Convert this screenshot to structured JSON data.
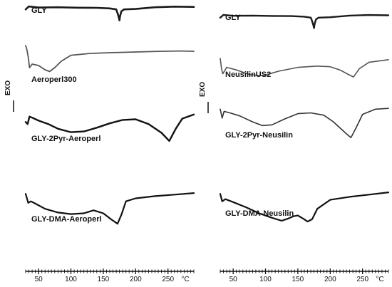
{
  "chart_data": [
    {
      "type": "line",
      "title": "",
      "ylabel": "EXO",
      "xunit": "°C",
      "xlim": [
        30,
        290
      ],
      "xticks": [
        50,
        100,
        150,
        200,
        250
      ],
      "series": [
        {
          "name": "GLY",
          "color": "#1a1a1a",
          "x": [
            30,
            35,
            50,
            80,
            110,
            140,
            160,
            170,
            172,
            174,
            175,
            176,
            178,
            182,
            200,
            230,
            260,
            290
          ],
          "y": [
            0.55,
            0.75,
            0.68,
            0.7,
            0.67,
            0.66,
            0.62,
            0.55,
            0.3,
            0.0,
            -0.2,
            0.1,
            0.42,
            0.55,
            0.58,
            0.7,
            0.74,
            0.72
          ]
        },
        {
          "name": "Aeroperl300",
          "color": "#555555",
          "x": [
            30,
            32,
            34,
            36,
            40,
            50,
            60,
            67,
            75,
            85,
            100,
            130,
            160,
            200,
            240,
            270,
            290
          ],
          "y": [
            1.0,
            0.7,
            0.2,
            -0.55,
            -0.3,
            -0.4,
            -0.7,
            -0.82,
            -0.55,
            -0.1,
            0.32,
            0.45,
            0.5,
            0.55,
            0.6,
            0.62,
            0.6
          ]
        },
        {
          "name": "GLY-2Pyr-Aeroperl",
          "color": "#111111",
          "x": [
            30,
            33,
            36,
            40,
            50,
            65,
            80,
            100,
            120,
            140,
            160,
            180,
            200,
            220,
            240,
            252,
            262,
            272,
            290
          ],
          "y": [
            0.3,
            0.15,
            0.7,
            0.62,
            0.4,
            0.15,
            -0.2,
            -0.45,
            -0.4,
            -0.12,
            0.2,
            0.45,
            0.5,
            0.15,
            -0.5,
            -1.1,
            -0.2,
            0.55,
            0.85
          ]
        },
        {
          "name": "GLY-DMA-Aeroperl",
          "color": "#111111",
          "x": [
            30,
            34,
            38,
            45,
            60,
            80,
            100,
            120,
            135,
            150,
            162,
            172,
            178,
            185,
            200,
            230,
            260,
            290
          ],
          "y": [
            0.8,
            0.2,
            0.3,
            0.15,
            -0.2,
            -0.45,
            -0.55,
            -0.5,
            -0.3,
            -0.5,
            -0.9,
            -1.2,
            -0.6,
            0.3,
            0.5,
            0.65,
            0.75,
            0.85
          ]
        }
      ]
    },
    {
      "type": "line",
      "title": "",
      "ylabel": "EXO",
      "xunit": "°C",
      "xlim": [
        30,
        290
      ],
      "xticks": [
        50,
        100,
        150,
        200,
        250
      ],
      "series": [
        {
          "name": "GLY",
          "color": "#1a1a1a",
          "x": [
            30,
            35,
            50,
            80,
            110,
            140,
            160,
            170,
            172,
            174,
            175,
            176,
            178,
            182,
            200,
            230,
            260,
            290
          ],
          "y": [
            0.55,
            0.75,
            0.68,
            0.7,
            0.67,
            0.66,
            0.62,
            0.55,
            0.3,
            0.0,
            -0.2,
            0.1,
            0.42,
            0.55,
            0.58,
            0.7,
            0.74,
            0.72
          ]
        },
        {
          "name": "NeusilinUS2",
          "color": "#555555",
          "x": [
            30,
            32,
            34,
            40,
            55,
            75,
            90,
            100,
            120,
            150,
            180,
            200,
            215,
            228,
            236,
            245,
            260,
            290
          ],
          "y": [
            1.0,
            0.2,
            -0.2,
            0.3,
            0.1,
            -0.25,
            -0.35,
            -0.3,
            0.0,
            0.3,
            0.4,
            0.35,
            0.1,
            -0.25,
            -0.45,
            0.2,
            0.7,
            0.9
          ]
        },
        {
          "name": "GLY-2Pyr-Neusilin",
          "color": "#333333",
          "x": [
            30,
            33,
            36,
            45,
            60,
            80,
            95,
            110,
            130,
            150,
            170,
            190,
            205,
            215,
            225,
            232,
            240,
            250,
            270,
            290
          ],
          "y": [
            0.75,
            0.15,
            0.6,
            0.5,
            0.3,
            -0.1,
            -0.35,
            -0.3,
            0.1,
            0.45,
            0.5,
            0.35,
            -0.1,
            -0.5,
            -0.9,
            -1.15,
            -0.5,
            0.4,
            0.75,
            0.8
          ]
        },
        {
          "name": "GLY-DMA-Neusilin",
          "color": "#111111",
          "x": [
            30,
            33,
            38,
            50,
            70,
            90,
            110,
            125,
            135,
            143,
            150,
            158,
            165,
            172,
            180,
            200,
            230,
            260,
            290
          ],
          "y": [
            0.8,
            0.3,
            0.45,
            0.25,
            -0.1,
            -0.5,
            -0.8,
            -1.0,
            -0.85,
            -0.7,
            -0.65,
            -0.85,
            -1.05,
            -0.9,
            -0.2,
            0.4,
            0.6,
            0.75,
            0.9
          ]
        }
      ]
    }
  ]
}
